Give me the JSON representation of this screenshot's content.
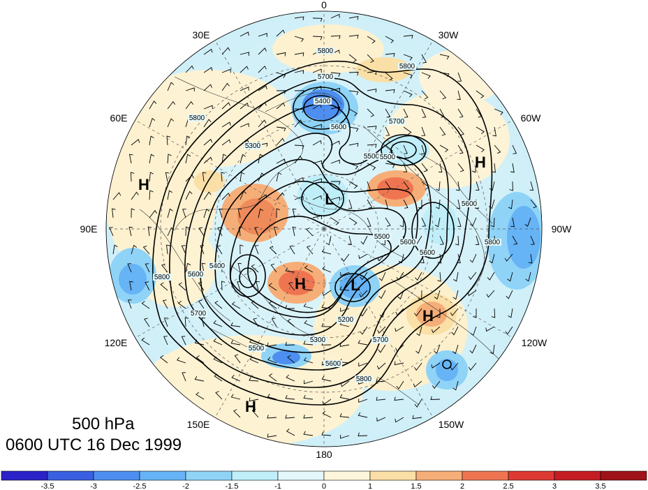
{
  "map": {
    "projection": "north-polar-stereographic",
    "longitude_labels": {
      "top": "0",
      "top_right_1": "30W",
      "right_upper": "60W",
      "right": "90W",
      "right_lower": "120W",
      "bottom_right": "150W",
      "bottom": "180",
      "bottom_left": "150E",
      "left_lower": "120E",
      "left": "90E",
      "left_upper": "60E",
      "top_left": "30E"
    },
    "pressure_systems": [
      {
        "type": "H",
        "label": "H"
      },
      {
        "type": "H",
        "label": "H"
      },
      {
        "type": "H",
        "label": "H"
      },
      {
        "type": "H",
        "label": "H"
      },
      {
        "type": "L",
        "label": "L"
      },
      {
        "type": "L",
        "label": "L"
      },
      {
        "type": "H",
        "label": "H"
      }
    ],
    "contour_labels": [
      "5800",
      "5800",
      "5700",
      "5400",
      "5600",
      "5300",
      "5800",
      "5700",
      "5500",
      "5600",
      "5800",
      "5600",
      "5500",
      "5600",
      "5200",
      "5300",
      "5600",
      "5700",
      "5800",
      "5400",
      "5500",
      "5500",
      "5700",
      "5600",
      "5800"
    ]
  },
  "titles": {
    "level": "500 hPa",
    "time": "0600 UTC 16 Dec 1999"
  },
  "colorbar": {
    "ticks": [
      "-3.5",
      "-3",
      "-2.5",
      "-2",
      "-1.5",
      "-1",
      "0",
      "1",
      "1.5",
      "2",
      "2.5",
      "3",
      "3.5"
    ],
    "colors": [
      "#2b22c8",
      "#3a5fe0",
      "#4d8ef0",
      "#66b3f5",
      "#8fd3f7",
      "#bfeef9",
      "#e4f8fb",
      "#fdf6dc",
      "#fadfa6",
      "#f6ae78",
      "#ef7551",
      "#dd3a33",
      "#c41e24",
      "#a0121a"
    ]
  }
}
